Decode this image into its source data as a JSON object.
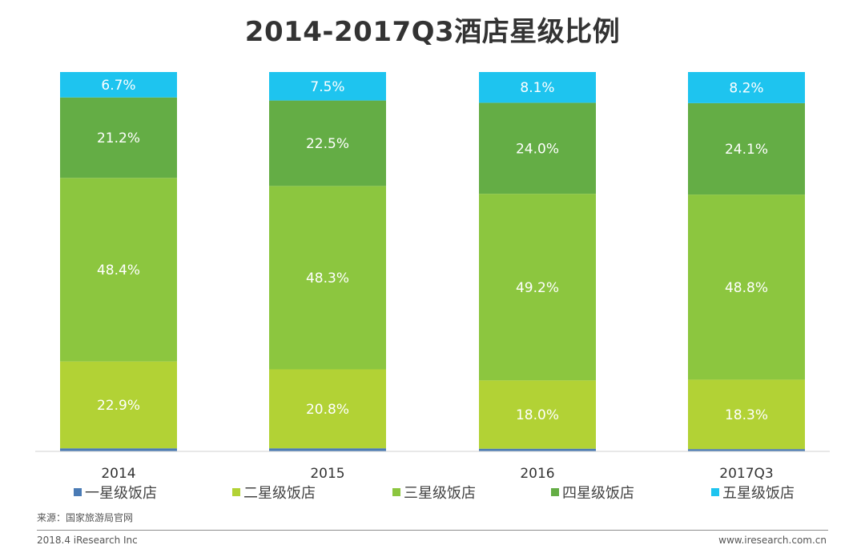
{
  "chart_data": {
    "type": "bar",
    "stacked": true,
    "title": "2014-2017Q3酒店星级比例",
    "categories": [
      "2014",
      "2015",
      "2016",
      "2017Q3"
    ],
    "series": [
      {
        "name": "一星级饭店",
        "color": "#4a7bb5",
        "values": [
          0.8,
          0.8,
          0.7,
          0.6
        ]
      },
      {
        "name": "二星级饭店",
        "color": "#b2d235",
        "values": [
          22.9,
          20.8,
          18.0,
          18.3
        ],
        "labels": [
          "22.9%",
          "20.8%",
          "18.0%",
          "18.3%"
        ]
      },
      {
        "name": "三星级饭店",
        "color": "#8cc63f",
        "values": [
          48.4,
          48.3,
          49.2,
          48.8
        ],
        "labels": [
          "48.4%",
          "48.3%",
          "49.2%",
          "48.8%"
        ]
      },
      {
        "name": "四星级饭店",
        "color": "#64ad45",
        "values": [
          21.2,
          22.5,
          24.0,
          24.1
        ],
        "labels": [
          "21.2%",
          "22.5%",
          "24.0%",
          "24.1%"
        ]
      },
      {
        "name": "五星级饭店",
        "color": "#1ec4ef",
        "values": [
          6.7,
          7.5,
          8.1,
          8.2
        ],
        "labels": [
          "6.7%",
          "7.5%",
          "8.1%",
          "8.2%"
        ]
      }
    ],
    "ylim": [
      0,
      100
    ],
    "grid": false,
    "legend": "bottom",
    "unit": "%"
  },
  "source": "来源：国家旅游局官网",
  "footer": {
    "left": "2018.4 iResearch Inc",
    "right": "www.iresearch.com.cn"
  }
}
